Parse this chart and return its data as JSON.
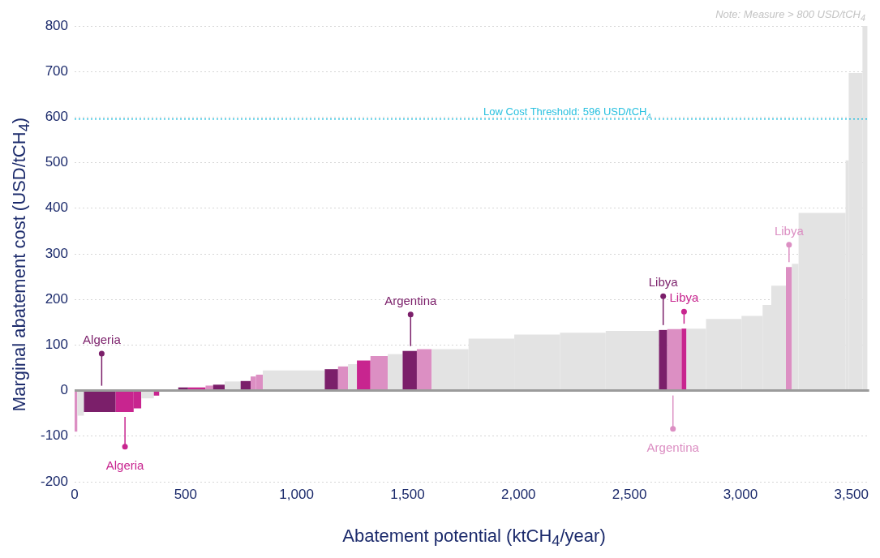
{
  "chart_data": {
    "type": "histogram",
    "xlabel": "Abatement potential (ktCH$_{4}$/year)",
    "ylabel": "Marginal abatement cost (USD/tCH$_{4}$)",
    "bins": [
      0,
      12,
      42,
      185,
      266,
      300,
      357,
      381,
      467,
      511,
      590,
      624,
      676,
      748,
      793,
      817,
      848,
      1127,
      1187,
      1232,
      1272,
      1333,
      1411,
      1478,
      1542,
      1609,
      1775,
      1981,
      2187,
      2393,
      2633,
      2670,
      2735,
      2757,
      2845,
      3005,
      3100,
      3139,
      3205,
      3232,
      3262,
      3474,
      3488,
      3550,
      3572
    ],
    "values": [
      -90,
      -55,
      -47,
      -47,
      -39,
      -17,
      -11,
      1,
      7,
      7,
      11,
      13,
      20,
      21,
      31,
      35,
      44,
      47,
      53,
      58,
      66,
      76,
      80,
      87,
      91,
      91,
      114,
      123,
      127,
      131,
      133,
      135,
      136,
      136,
      157,
      164,
      188,
      230,
      271,
      278,
      390,
      505,
      697,
      800
    ],
    "colors": [
      "#dc8fc3",
      "#e3e3e3",
      "#7b1f6a",
      "#c8258f",
      "#c8258f",
      "#e3e3e3",
      "#c8258f",
      "#e3e3e3",
      "#7b1f6a",
      "#c8258f",
      "#dc8fc3",
      "#7b1f6a",
      "#e3e3e3",
      "#7b1f6a",
      "#dc8fc3",
      "#dc8fc3",
      "#e3e3e3",
      "#7b1f6a",
      "#dc8fc3",
      "#e3e3e3",
      "#c8258f",
      "#dc8fc3",
      "#e3e3e3",
      "#7b1f6a",
      "#dc8fc3",
      "#e3e3e3",
      "#e3e3e3",
      "#e3e3e3",
      "#e3e3e3",
      "#e3e3e3",
      "#7b1f6a",
      "#dc8fc3",
      "#c8258f",
      "#e3e3e3",
      "#e3e3e3",
      "#e3e3e3",
      "#e3e3e3",
      "#e3e3e3",
      "#dc8fc3",
      "#e3e3e3",
      "#e3e3e3",
      "#e3e3e3",
      "#e3e3e3",
      "#e3e3e3"
    ],
    "xlim": [
      0,
      3580
    ],
    "ylim": [
      -200,
      800
    ],
    "xticks": [
      0,
      {
        "value": 500,
        "label": "500"
      },
      {
        "value": 1000,
        "label": "1,000"
      },
      {
        "value": 1500,
        "label": "1,500"
      },
      {
        "value": 2000,
        "label": "2,000"
      },
      {
        "value": 2500,
        "label": "2,500"
      },
      {
        "value": 3000,
        "label": "3,000"
      },
      {
        "value": 3500,
        "label": "3,500"
      }
    ],
    "yticks": [
      -200,
      -100,
      0,
      100,
      200,
      300,
      400,
      500,
      600,
      700,
      800
    ],
    "grid": "y",
    "ref_lines": [
      {
        "axis": "y",
        "value": 596,
        "label": "Low Cost Threshold: 596 USD/tCH$_{4}$",
        "color": "#29c0df",
        "line_style": "dotted"
      },
      {
        "axis": "y",
        "value": 0,
        "color": "#9b9b9b",
        "line_style": "solid"
      }
    ],
    "annotations": [
      "Note: Measure > 800 USD/tCH$_{4}$",
      {
        "text": "Algeria",
        "x": 122,
        "y": 81
      },
      {
        "text": "Algeria",
        "x": 227,
        "y": -123
      },
      {
        "text": "Argentina",
        "x": 1514,
        "y": 167
      },
      {
        "text": "Libya",
        "x": 2652,
        "y": 207
      },
      {
        "text": "Libya",
        "x": 2746,
        "y": 173
      },
      {
        "text": "Argentina",
        "x": 2696,
        "y": -84
      },
      {
        "text": "Libya",
        "x": 3219,
        "y": 320
      }
    ]
  }
}
